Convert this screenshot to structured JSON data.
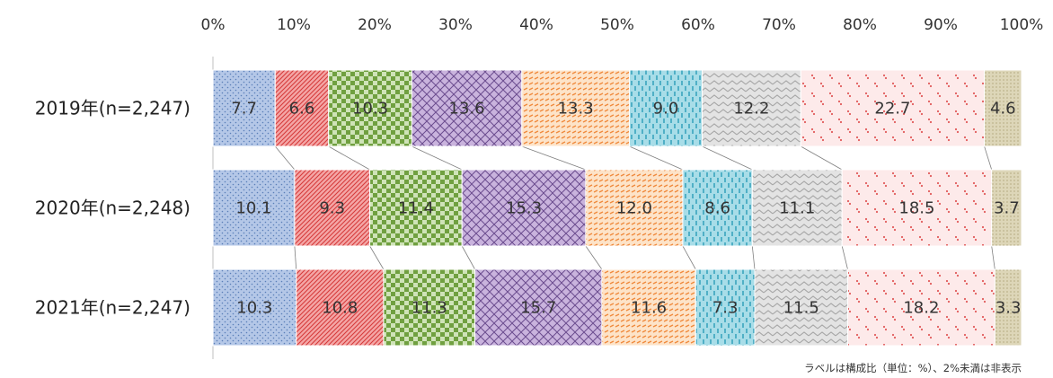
{
  "chart_data": {
    "type": "bar",
    "orientation": "horizontal",
    "stacked": true,
    "percent": true,
    "categories": [
      "2019年(n=2,247)",
      "2020年(n=2,248)",
      "2021年(n=2,247)"
    ],
    "x_ticks": [
      "0%",
      "10%",
      "20%",
      "30%",
      "40%",
      "50%",
      "60%",
      "70%",
      "80%",
      "90%",
      "100%"
    ],
    "xlim": [
      0,
      100
    ],
    "series": [
      {
        "values": [
          7.7,
          10.1,
          10.3
        ],
        "color": "#b4c7e7",
        "pattern": "dots"
      },
      {
        "values": [
          6.6,
          9.3,
          10.8
        ],
        "color": "#f4a6a6",
        "pattern": "diagonal"
      },
      {
        "values": [
          10.3,
          11.4,
          11.3
        ],
        "color": "#a9d18e",
        "pattern": "checker"
      },
      {
        "values": [
          13.6,
          15.3,
          15.7
        ],
        "color": "#c9b3dd",
        "pattern": "crosshatch"
      },
      {
        "values": [
          13.3,
          12.0,
          11.6
        ],
        "color": "#fdd5b1",
        "pattern": "dashes"
      },
      {
        "values": [
          9.0,
          8.6,
          7.3
        ],
        "color": "#a8dde8",
        "pattern": "vertical-dashes"
      },
      {
        "values": [
          12.2,
          11.1,
          11.5
        ],
        "color": "#d9d9d9",
        "pattern": "wave"
      },
      {
        "values": [
          22.7,
          18.5,
          18.2
        ],
        "color": "#fce4e4",
        "pattern": "sparse-dots"
      },
      {
        "values": [
          4.6,
          3.7,
          3.3
        ],
        "color": "#ddd6b8",
        "pattern": "fine-dots"
      }
    ],
    "value_labels": [
      [
        "7.7",
        "10.1",
        "10.3"
      ],
      [
        "6.6",
        "9.3",
        "10.8"
      ],
      [
        "10.3",
        "11.4",
        "11.3"
      ],
      [
        "13.6",
        "15.3",
        "15.7"
      ],
      [
        "13.3",
        "12.0",
        "11.6"
      ],
      [
        "9.0",
        "8.6",
        "7.3"
      ],
      [
        "12.2",
        "11.1",
        "11.5"
      ],
      [
        "22.7",
        "18.5",
        "18.2"
      ],
      [
        "4.6",
        "3.7",
        "3.3"
      ]
    ],
    "grid": false,
    "series_connector_lines": true,
    "legend": "none",
    "footnote": "ラベルは構成比（単位：%）、2%未満は非表示"
  }
}
